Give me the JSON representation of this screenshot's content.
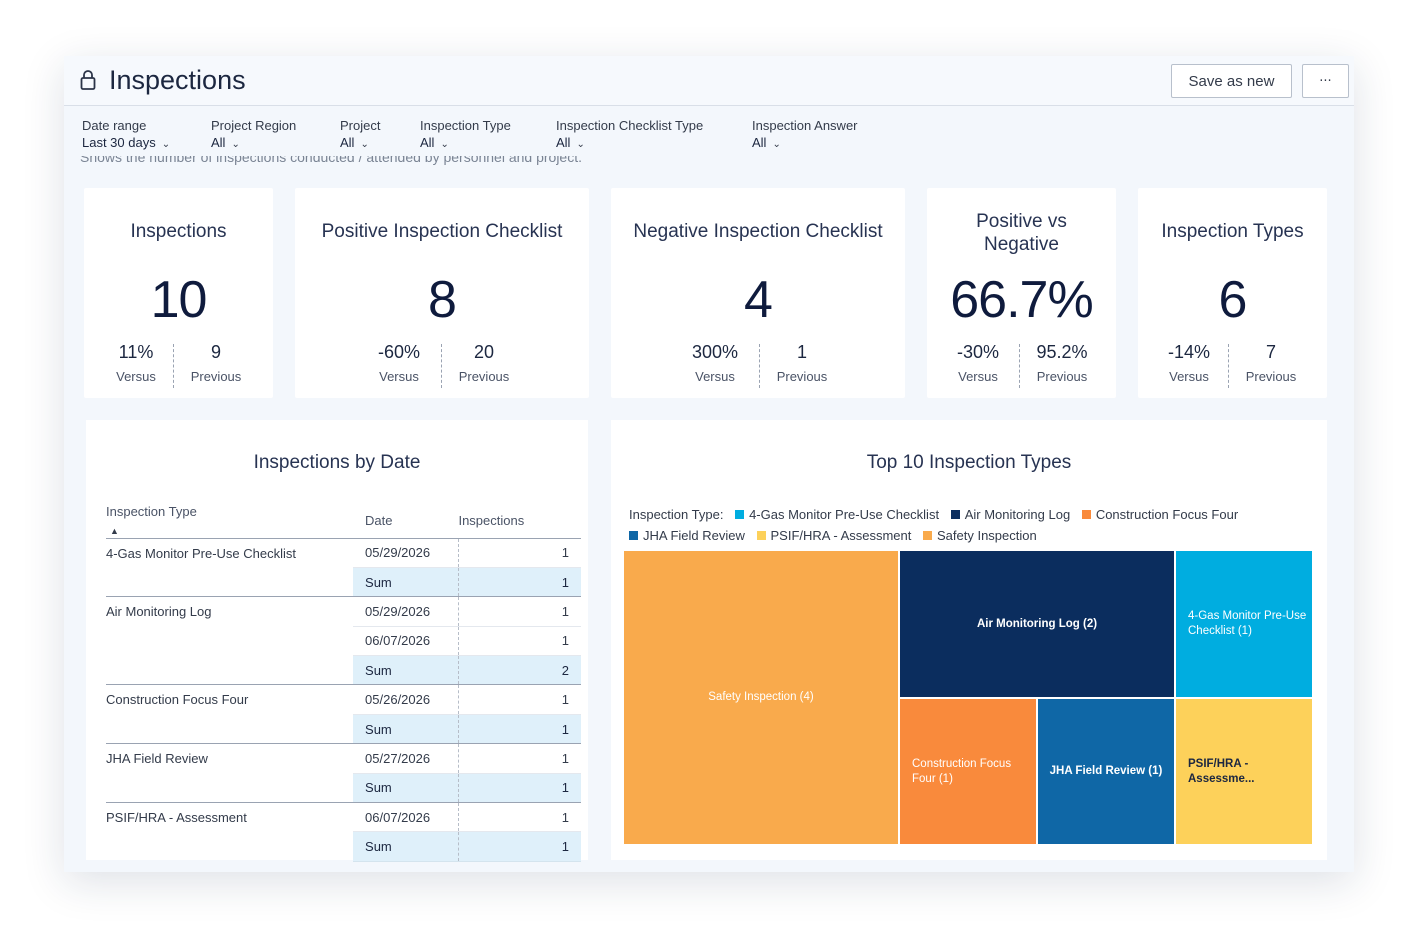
{
  "header": {
    "title": "Inspections",
    "save_label": "Save as new",
    "more_label": "···"
  },
  "filters": [
    {
      "label": "Date range",
      "value": "Last 30 days"
    },
    {
      "label": "Project Region",
      "value": "All"
    },
    {
      "label": "Project",
      "value": "All"
    },
    {
      "label": "Inspection Type",
      "value": "All"
    },
    {
      "label": "Inspection Checklist Type",
      "value": "All"
    },
    {
      "label": "Inspection Answer",
      "value": "All"
    }
  ],
  "description": "Shows the number of inspections conducted / attended by personnel and project.",
  "kpis": [
    {
      "title": "Inspections",
      "value": "10",
      "versus": "11%",
      "previous": "9",
      "versus_label": "Versus",
      "previous_label": "Previous"
    },
    {
      "title": "Positive Inspection Checklist",
      "value": "8",
      "versus": "-60%",
      "previous": "20",
      "versus_label": "Versus",
      "previous_label": "Previous"
    },
    {
      "title": "Negative Inspection Checklist",
      "value": "4",
      "versus": "300%",
      "previous": "1",
      "versus_label": "Versus",
      "previous_label": "Previous"
    },
    {
      "title": "Positive vs Negative",
      "value": "66.7%",
      "versus": "-30%",
      "previous": "95.2%",
      "versus_label": "Versus",
      "previous_label": "Previous"
    },
    {
      "title": "Inspection Types",
      "value": "6",
      "versus": "-14%",
      "previous": "7",
      "versus_label": "Versus",
      "previous_label": "Previous"
    }
  ],
  "by_date": {
    "title": "Inspections by Date",
    "columns": [
      "Inspection Type",
      "Date",
      "Inspections"
    ],
    "groups": [
      {
        "type": "4-Gas Monitor Pre-Use Checklist",
        "rows": [
          {
            "date": "05/29/2026",
            "count": "1"
          }
        ],
        "sum_label": "Sum",
        "sum": "1"
      },
      {
        "type": "Air Monitoring Log",
        "rows": [
          {
            "date": "05/29/2026",
            "count": "1"
          },
          {
            "date": "06/07/2026",
            "count": "1"
          }
        ],
        "sum_label": "Sum",
        "sum": "2"
      },
      {
        "type": "Construction Focus Four",
        "rows": [
          {
            "date": "05/26/2026",
            "count": "1"
          }
        ],
        "sum_label": "Sum",
        "sum": "1"
      },
      {
        "type": "JHA Field Review",
        "rows": [
          {
            "date": "05/27/2026",
            "count": "1"
          }
        ],
        "sum_label": "Sum",
        "sum": "1"
      },
      {
        "type": "PSIF/HRA - Assessment",
        "rows": [
          {
            "date": "06/07/2026",
            "count": "1"
          }
        ],
        "sum_label": "Sum",
        "sum": "1"
      }
    ]
  },
  "top_types": {
    "title": "Top 10 Inspection Types",
    "legend_label": "Inspection Type:",
    "legend": [
      {
        "name": "4-Gas Monitor Pre-Use Checklist",
        "color": "#00ADE0"
      },
      {
        "name": "Air Monitoring Log",
        "color": "#0B2D5E"
      },
      {
        "name": "Construction Focus Four",
        "color": "#F98A3C"
      },
      {
        "name": "JHA Field Review",
        "color": "#0F67A6"
      },
      {
        "name": "PSIF/HRA - Assessment",
        "color": "#FDD15A"
      },
      {
        "name": "Safety Inspection",
        "color": "#F9AA4C"
      }
    ],
    "tiles": [
      {
        "label": "Safety Inspection (4)",
        "name": "Safety Inspection",
        "value": 4,
        "color": "#F9AA4C",
        "text_color": "#ffffff",
        "bold": false,
        "align": "center"
      },
      {
        "label": "Air Monitoring Log (2)",
        "name": "Air Monitoring Log",
        "value": 2,
        "color": "#0B2D5E",
        "text_color": "#ffffff",
        "bold": true,
        "align": "center"
      },
      {
        "label": "4-Gas Monitor Pre-Use Checklist (1)",
        "name": "4-Gas Monitor Pre-Use Checklist",
        "value": 1,
        "color": "#00ADE0",
        "text_color": "#ffffff",
        "bold": false,
        "align": "left"
      },
      {
        "label": "Construction Focus Four (1)",
        "name": "Construction Focus Four",
        "value": 1,
        "color": "#F98A3C",
        "text_color": "#ffffff",
        "bold": false,
        "align": "left"
      },
      {
        "label": "JHA Field Review (1)",
        "name": "JHA Field Review",
        "value": 1,
        "color": "#0F67A6",
        "text_color": "#ffffff",
        "bold": true,
        "align": "center"
      },
      {
        "label": "PSIF/HRA - Assessme...",
        "name": "PSIF/HRA - Assessment",
        "value": 1,
        "color": "#FDD15A",
        "text_color": "#1c2740",
        "bold": true,
        "align": "left"
      }
    ]
  }
}
